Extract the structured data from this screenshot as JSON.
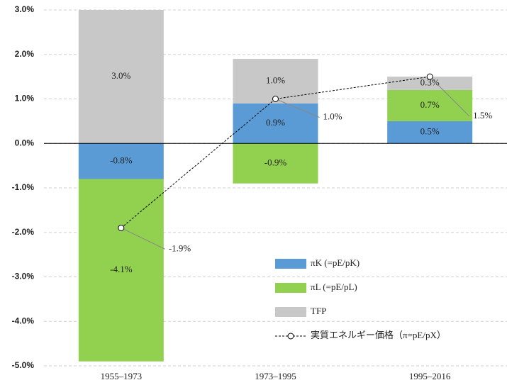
{
  "chart_data": {
    "type": "bar",
    "stacked": true,
    "categories": [
      "1955–1973",
      "1973–1995",
      "1995–2016"
    ],
    "series": [
      {
        "name": "πK (=pE/pK)",
        "color": "#5b9bd5",
        "values": [
          -0.8,
          0.9,
          0.5
        ],
        "value_labels": [
          "-0.8%",
          "0.9%",
          "0.5%"
        ]
      },
      {
        "name": "πL (=pE/pL)",
        "color": "#92d050",
        "values": [
          -4.1,
          -0.9,
          0.7
        ],
        "value_labels": [
          "-4.1%",
          "-0.9%",
          "0.7%"
        ]
      },
      {
        "name": "TFP",
        "color": "#c8c8c8",
        "values": [
          3.0,
          1.0,
          0.3
        ],
        "value_labels": [
          "3.0%",
          "1.0%",
          "0.3%"
        ]
      },
      {
        "name": "実質エネルギー価格（π=pE/pX）",
        "type": "line",
        "color": "#000000",
        "values": [
          -1.9,
          1.0,
          1.5
        ],
        "value_labels": [
          "-1.9%",
          "1.0%",
          "1.5%"
        ]
      }
    ],
    "ylim": [
      -5,
      3
    ],
    "yticks": [
      {
        "value": -5,
        "label": "-5.0%"
      },
      {
        "value": -4,
        "label": "-4.0%"
      },
      {
        "value": -3,
        "label": "-3.0%"
      },
      {
        "value": -2,
        "label": "-2.0%"
      },
      {
        "value": -1,
        "label": "-1.0%"
      },
      {
        "value": 0,
        "label": "0.0%"
      },
      {
        "value": 1,
        "label": "1.0%"
      },
      {
        "value": 2,
        "label": "2.0%"
      },
      {
        "value": 3,
        "label": "3.0%"
      }
    ],
    "grid": true
  }
}
